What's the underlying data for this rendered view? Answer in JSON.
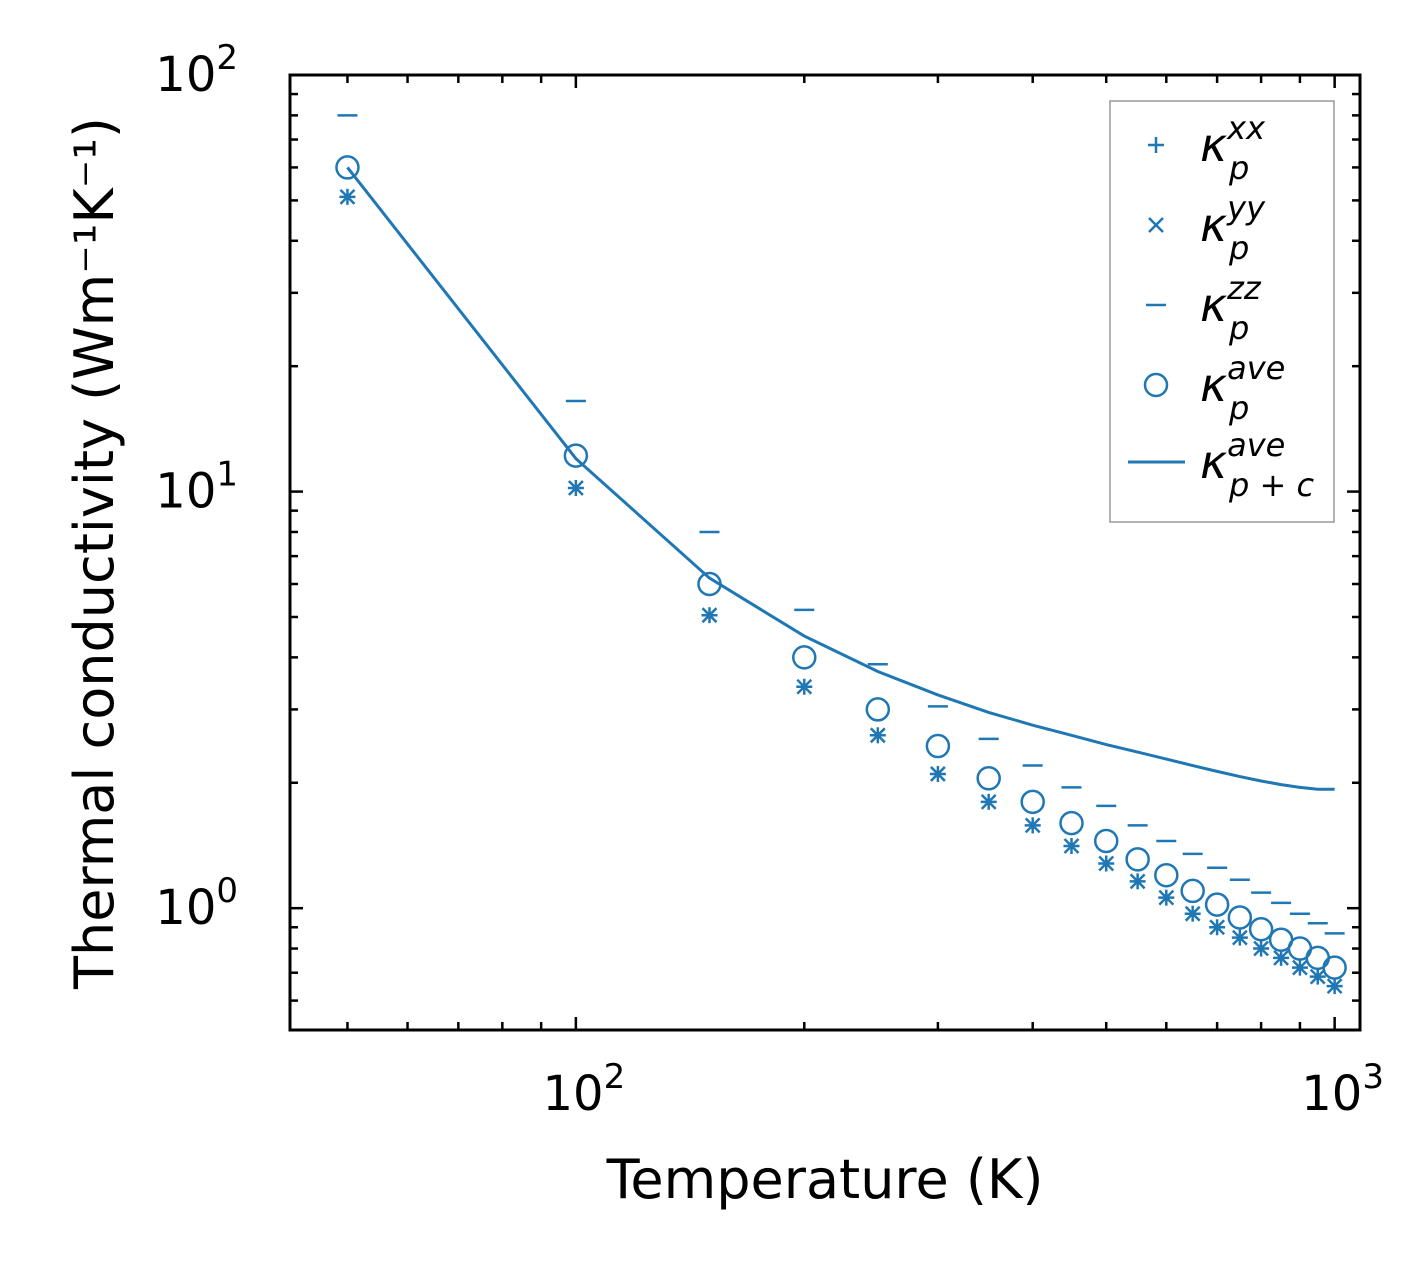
{
  "colors": {
    "series": "#1f77b4",
    "axis": "#000000",
    "legend_border": "#999999",
    "background": "#ffffff"
  },
  "chart_data": {
    "type": "scatter",
    "xscale": "log",
    "yscale": "log",
    "xlim": [
      42,
      1080
    ],
    "ylim": [
      0.51,
      100
    ],
    "xlabel": "Temperature (K)",
    "ylabel": "Thermal conductivity (Wm⁻¹K⁻¹)",
    "x_ticks": [
      {
        "base": "10",
        "exp": "2",
        "value": 100
      },
      {
        "base": "10",
        "exp": "3",
        "value": 1000
      }
    ],
    "y_ticks": [
      {
        "base": "10",
        "exp": "0",
        "value": 1
      },
      {
        "base": "10",
        "exp": "1",
        "value": 10
      },
      {
        "base": "10",
        "exp": "2",
        "value": 100
      }
    ],
    "legend_position": "top-right",
    "x": [
      50,
      100,
      150,
      200,
      250,
      300,
      350,
      400,
      450,
      500,
      550,
      600,
      650,
      700,
      750,
      800,
      850,
      900,
      950,
      1000
    ],
    "series": [
      {
        "name": "kappa_p^xx",
        "label_base": "κ",
        "label_sub": "p",
        "label_sup": "xx",
        "marker": "plus",
        "values": [
          51,
          10.2,
          5.05,
          3.4,
          2.6,
          2.1,
          1.8,
          1.58,
          1.41,
          1.28,
          1.16,
          1.06,
          0.97,
          0.9,
          0.85,
          0.8,
          0.76,
          0.72,
          0.685,
          0.65
        ]
      },
      {
        "name": "kappa_p^yy",
        "label_base": "κ",
        "label_sub": "p",
        "label_sup": "yy",
        "marker": "x",
        "values": [
          51,
          10.2,
          5.05,
          3.4,
          2.6,
          2.1,
          1.8,
          1.58,
          1.41,
          1.28,
          1.16,
          1.06,
          0.97,
          0.9,
          0.85,
          0.8,
          0.76,
          0.72,
          0.685,
          0.65
        ]
      },
      {
        "name": "kappa_p^zz",
        "label_base": "κ",
        "label_sub": "p",
        "label_sup": "zz",
        "marker": "hline",
        "values": [
          80,
          16.5,
          8.0,
          5.2,
          3.85,
          3.05,
          2.55,
          2.2,
          1.95,
          1.76,
          1.58,
          1.45,
          1.35,
          1.25,
          1.17,
          1.09,
          1.03,
          0.97,
          0.92,
          0.87
        ]
      },
      {
        "name": "kappa_p^ave",
        "label_base": "κ",
        "label_sub": "p",
        "label_sup": "ave",
        "marker": "circle",
        "values": [
          60,
          12.2,
          6.0,
          4.0,
          3.0,
          2.45,
          2.05,
          1.8,
          1.6,
          1.45,
          1.31,
          1.2,
          1.1,
          1.02,
          0.95,
          0.89,
          0.84,
          0.8,
          0.76,
          0.72
        ]
      },
      {
        "name": "kappa_p+c^ave",
        "label_base": "κ",
        "label_sub": "p + c",
        "label_sup": "ave",
        "marker": "line",
        "values": [
          60,
          12.0,
          6.2,
          4.5,
          3.7,
          3.25,
          2.95,
          2.75,
          2.6,
          2.47,
          2.37,
          2.28,
          2.2,
          2.13,
          2.07,
          2.02,
          1.98,
          1.95,
          1.93,
          1.93
        ]
      }
    ]
  }
}
